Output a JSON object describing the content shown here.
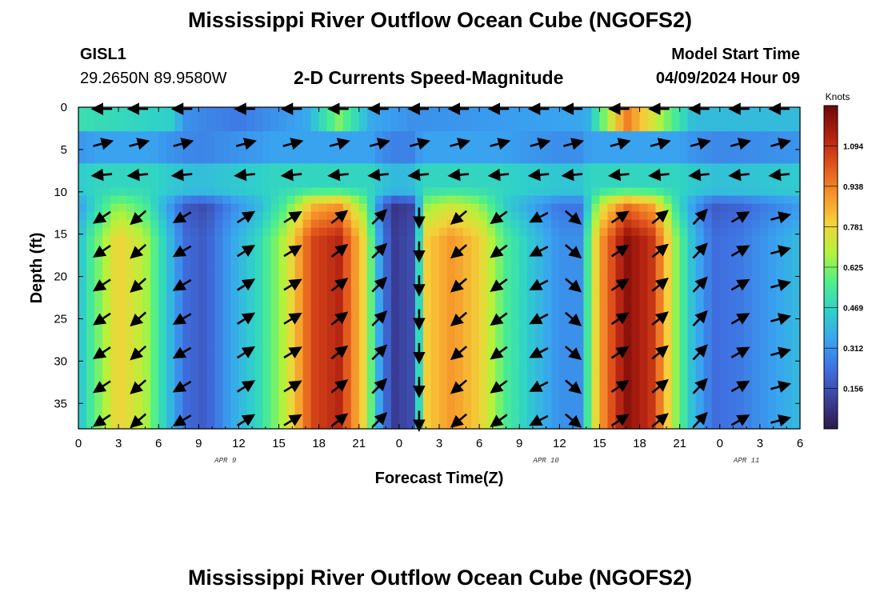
{
  "header": {
    "title": "Mississippi River Outflow Ocean Cube (NGOFS2)",
    "station_id": "GISL1",
    "station_location": "29.2650N  89.9580W",
    "subtitle": "2-D Currents Speed-Magnitude",
    "model_start_label": "Model Start Time",
    "model_start_value": "04/09/2024 Hour 09"
  },
  "footer": {
    "title": "Mississippi River Outflow Ocean Cube (NGOFS2)"
  },
  "chart_data": {
    "type": "heatmap",
    "xlabel": "Forecast Time(Z)",
    "ylabel": "Depth (ft)",
    "x_unit": "hours since 04/09/2024 00Z",
    "x_range": [
      0,
      54
    ],
    "y_range": [
      0,
      38
    ],
    "y_reversed": true,
    "x_ticks": [
      0,
      3,
      6,
      9,
      12,
      15,
      18,
      21,
      24,
      27,
      30,
      33,
      36,
      39,
      42,
      45,
      48,
      51,
      54
    ],
    "x_tick_labels": [
      "0",
      "3",
      "6",
      "9",
      "12",
      "15",
      "18",
      "21",
      "0",
      "3",
      "6",
      "9",
      "12",
      "15",
      "18",
      "21",
      "0",
      "3",
      "6"
    ],
    "y_ticks": [
      0,
      5,
      10,
      15,
      20,
      25,
      30,
      35
    ],
    "y_tick_labels": [
      "0",
      "5",
      "10",
      "15",
      "20",
      "25",
      "30",
      "35"
    ],
    "date_labels": [
      {
        "x": 11,
        "text": "APR 9"
      },
      {
        "x": 35,
        "text": "APR 10"
      },
      {
        "x": 50,
        "text": "APR 11"
      }
    ],
    "colorbar": {
      "title": "Knots",
      "min": 0.0,
      "max": 1.25,
      "tick_values": [
        0.156,
        0.312,
        0.469,
        0.625,
        0.781,
        0.938,
        1.094
      ],
      "tick_labels": [
        "0.156",
        "0.312",
        "0.469",
        "0.625",
        "0.781",
        "0.938",
        "1.094"
      ],
      "colors": [
        "#2c1b4a",
        "#3b3f9a",
        "#3f6fe0",
        "#39a3f0",
        "#2fd1c9",
        "#4ef08a",
        "#b5f23a",
        "#f4d23a",
        "#f6922a",
        "#e0521c",
        "#b01f10",
        "#6a0808"
      ]
    },
    "time_profile": [
      {
        "t": 0.0,
        "s": 0.4,
        "dir": -170
      },
      {
        "t": 1.0,
        "s": 0.55,
        "dir": -150
      },
      {
        "t": 3.0,
        "s": 0.8,
        "dir": -140
      },
      {
        "t": 5.0,
        "s": 0.68,
        "dir": -138
      },
      {
        "t": 6.5,
        "s": 0.45,
        "dir": -145
      },
      {
        "t": 8.0,
        "s": 0.22,
        "dir": -150
      },
      {
        "t": 9.5,
        "s": 0.18,
        "dir": -160
      },
      {
        "t": 11.5,
        "s": 0.35,
        "dir": 35
      },
      {
        "t": 13.5,
        "s": 0.48,
        "dir": 30
      },
      {
        "t": 15.5,
        "s": 0.7,
        "dir": 30
      },
      {
        "t": 17.5,
        "s": 1.05,
        "dir": 35
      },
      {
        "t": 19.5,
        "s": 1.12,
        "dir": 38
      },
      {
        "t": 21.5,
        "s": 0.75,
        "dir": 42
      },
      {
        "t": 22.5,
        "s": 0.35,
        "dir": 45
      },
      {
        "t": 23.5,
        "s": 0.1,
        "dir": 80
      },
      {
        "t": 25.0,
        "s": 0.15,
        "dir": -50
      },
      {
        "t": 26.0,
        "s": 0.8,
        "dir": -130
      },
      {
        "t": 28.0,
        "s": 0.9,
        "dir": -140
      },
      {
        "t": 30.0,
        "s": 0.8,
        "dir": -140
      },
      {
        "t": 32.0,
        "s": 0.55,
        "dir": -145
      },
      {
        "t": 34.0,
        "s": 0.42,
        "dir": -150
      },
      {
        "t": 36.0,
        "s": 0.3,
        "dir": -160
      },
      {
        "t": 37.5,
        "s": 0.3,
        "dir": 20
      },
      {
        "t": 39.0,
        "s": 0.88,
        "dir": 30
      },
      {
        "t": 41.0,
        "s": 1.2,
        "dir": 35
      },
      {
        "t": 43.0,
        "s": 1.08,
        "dir": 38
      },
      {
        "t": 44.8,
        "s": 0.62,
        "dir": 42
      },
      {
        "t": 46.0,
        "s": 0.4,
        "dir": 50
      },
      {
        "t": 47.5,
        "s": 0.22,
        "dir": 40
      },
      {
        "t": 49.5,
        "s": 0.25,
        "dir": 30
      },
      {
        "t": 51.0,
        "s": 0.3,
        "dir": 20
      },
      {
        "t": 52.5,
        "s": 0.35,
        "dir": 15
      },
      {
        "t": 54.0,
        "s": 0.4,
        "dir": 10
      }
    ],
    "surface_profile": [
      {
        "t": 0.0,
        "s": 0.5
      },
      {
        "t": 7.0,
        "s": 0.45
      },
      {
        "t": 8.0,
        "s": 0.3
      },
      {
        "t": 12.0,
        "s": 0.25
      },
      {
        "t": 17.0,
        "s": 0.35
      },
      {
        "t": 19.5,
        "s": 0.62
      },
      {
        "t": 22.0,
        "s": 0.35
      },
      {
        "t": 25.0,
        "s": 0.3
      },
      {
        "t": 38.0,
        "s": 0.35
      },
      {
        "t": 41.0,
        "s": 0.95
      },
      {
        "t": 46.0,
        "s": 0.4
      },
      {
        "t": 54.0,
        "s": 0.4
      }
    ],
    "arrow_depths": [
      0.2,
      4.3,
      8.0,
      13.0,
      17.0,
      21.0,
      25.0,
      29.0,
      33.0,
      37.0
    ],
    "arrow_times": [
      1.8,
      4.5,
      7.8,
      12.5,
      16.0,
      19.5,
      22.5,
      25.5,
      28.5,
      31.5,
      34.5,
      37.0,
      40.5,
      43.5,
      46.5,
      49.5,
      52.5
    ]
  }
}
